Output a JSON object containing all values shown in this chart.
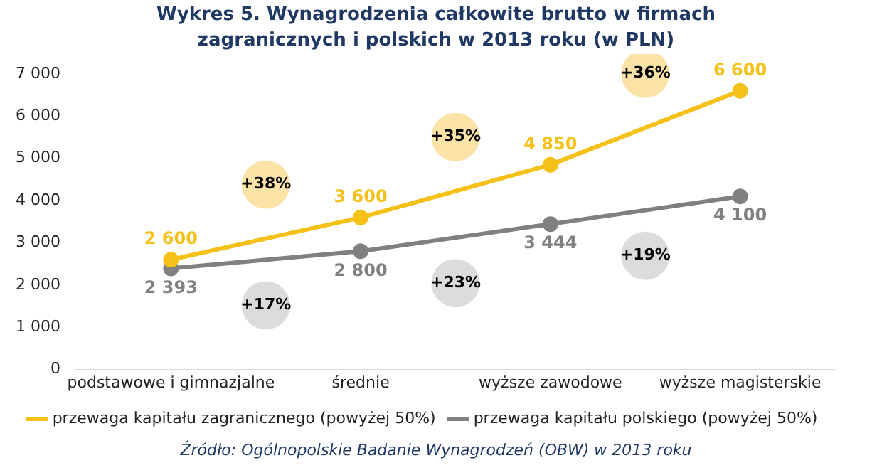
{
  "chart_data": {
    "type": "line",
    "title": "Wykres 5. Wynagrodzenia całkowite brutto w firmach zagranicznych i polskich w 2013 roku (w PLN)",
    "categories": [
      "podstawowe i gimnazjalne",
      "średnie",
      "wyższe zawodowe",
      "wyższe magisterskie"
    ],
    "series": [
      {
        "name": "przewaga kapitału zagranicznego (powyżej 50%)",
        "color": "#f5c118",
        "values": [
          2600,
          3600,
          4850,
          6600
        ],
        "value_labels": [
          "2 600",
          "3 600",
          "4 850",
          "6 600"
        ]
      },
      {
        "name": "przewaga kapitału polskiego (powyżej 50%)",
        "color": "#808080",
        "values": [
          2393,
          2800,
          3444,
          4100
        ],
        "value_labels": [
          "2 393",
          "2 800",
          "3 444",
          "4 100"
        ]
      }
    ],
    "ylim": [
      0,
      7000
    ],
    "yticks": [
      0,
      {
        "value": 1000,
        "label": "1 000"
      },
      {
        "value": 2000,
        "label": "2 000"
      },
      {
        "value": 3000,
        "label": "3 000"
      },
      {
        "value": 4000,
        "label": "4 000"
      },
      {
        "value": 5000,
        "label": "5 000"
      },
      {
        "value": 6000,
        "label": "6 000"
      },
      {
        "value": 7000,
        "label": "7 000"
      }
    ],
    "grid": false,
    "legend": "bottom",
    "marker": "circle",
    "line_style": "solid",
    "annotations": [
      "+38%",
      "+35%",
      "+36%",
      "+17%",
      "+23%",
      "+19%",
      "Źródło: Ogólnopolskie Badanie Wynagrodzeń (OBW) w 2013 roku"
    ]
  }
}
